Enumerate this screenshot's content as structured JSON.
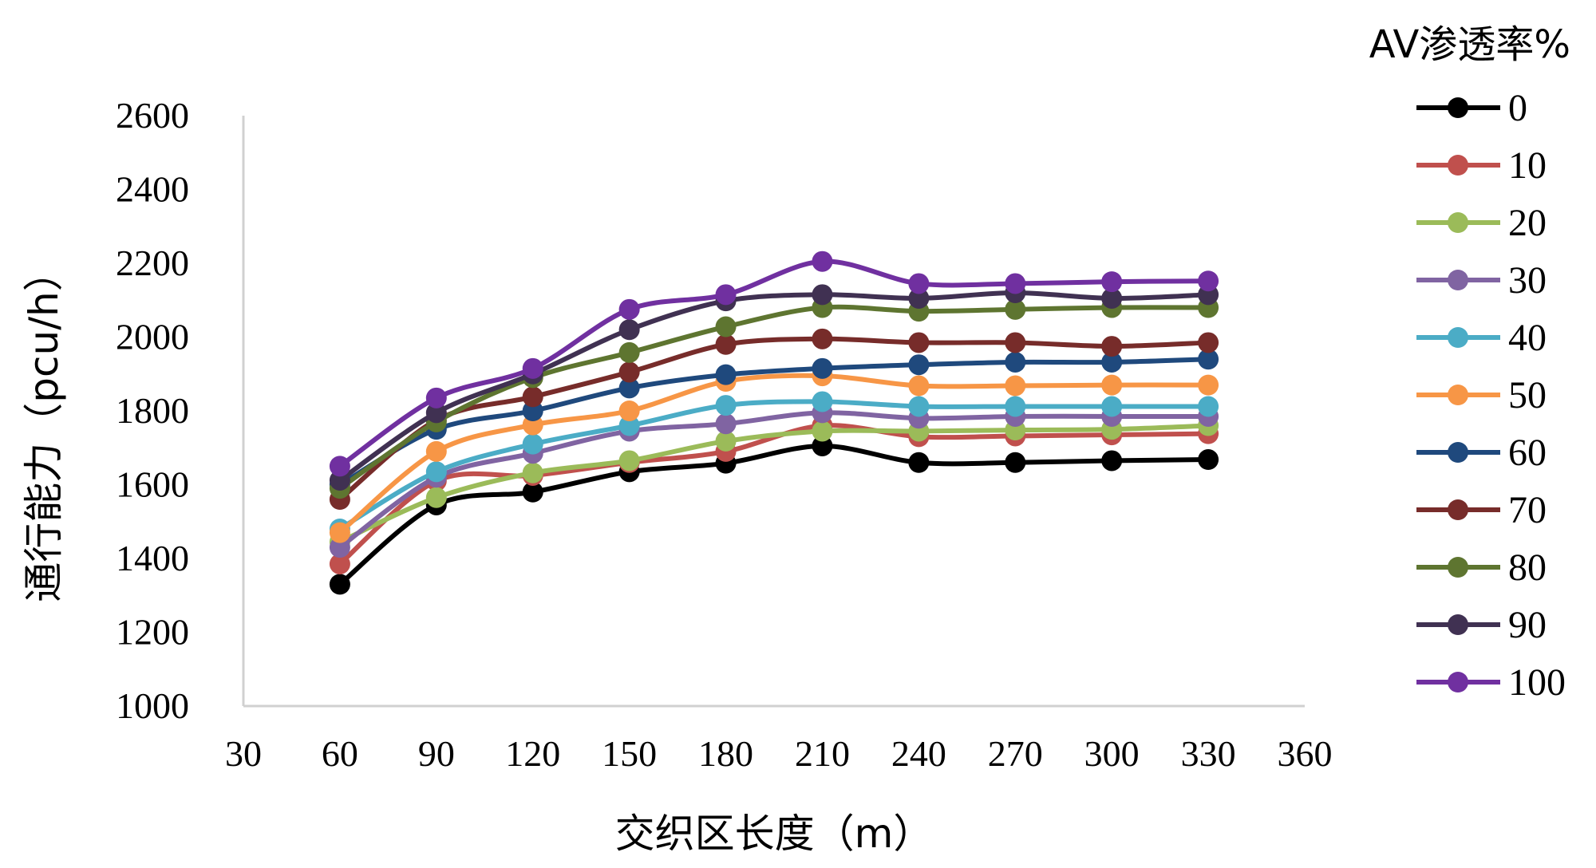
{
  "chart_data": {
    "type": "line",
    "xlabel": "交织区长度（m）",
    "ylabel": "通行能力（pcu/h）",
    "legend_title": "AV渗透率%",
    "legend_position": "right",
    "grid": false,
    "xlim": [
      30,
      360
    ],
    "ylim": [
      1000,
      2600
    ],
    "x_ticks": [
      "30",
      "60",
      "90",
      "120",
      "150",
      "180",
      "210",
      "240",
      "270",
      "300",
      "330",
      "360"
    ],
    "y_ticks": [
      "1000",
      "1200",
      "1400",
      "1600",
      "1800",
      "2000",
      "2200",
      "2400",
      "2600"
    ],
    "x": [
      60,
      90,
      120,
      150,
      180,
      210,
      240,
      270,
      300,
      330
    ],
    "series": [
      {
        "name": "0",
        "color": "#000000",
        "values": [
          1330,
          1545,
          1580,
          1635,
          1658,
          1705,
          1660,
          1660,
          1665,
          1668
        ]
      },
      {
        "name": "10",
        "color": "#C0504D",
        "values": [
          1385,
          1610,
          1625,
          1660,
          1690,
          1760,
          1730,
          1732,
          1735,
          1738
        ]
      },
      {
        "name": "20",
        "color": "#9BBB59",
        "values": [
          1445,
          1565,
          1632,
          1665,
          1718,
          1745,
          1745,
          1748,
          1750,
          1760
        ]
      },
      {
        "name": "30",
        "color": "#8064A2",
        "values": [
          1430,
          1620,
          1685,
          1745,
          1765,
          1795,
          1780,
          1785,
          1785,
          1785
        ]
      },
      {
        "name": "40",
        "color": "#4BACC6",
        "values": [
          1480,
          1635,
          1710,
          1760,
          1815,
          1825,
          1812,
          1812,
          1812,
          1812
        ]
      },
      {
        "name": "50",
        "color": "#F79646",
        "values": [
          1470,
          1690,
          1762,
          1800,
          1880,
          1895,
          1868,
          1868,
          1870,
          1870
        ]
      },
      {
        "name": "60",
        "color": "#1F497D",
        "values": [
          1600,
          1750,
          1800,
          1862,
          1898,
          1915,
          1925,
          1932,
          1932,
          1940
        ]
      },
      {
        "name": "70",
        "color": "#772C2A",
        "values": [
          1560,
          1775,
          1838,
          1905,
          1980,
          1995,
          1985,
          1985,
          1975,
          1985
        ]
      },
      {
        "name": "80",
        "color": "#5E7530",
        "values": [
          1590,
          1770,
          1890,
          1958,
          2028,
          2080,
          2070,
          2075,
          2080,
          2080
        ]
      },
      {
        "name": "90",
        "color": "#403152",
        "values": [
          1612,
          1795,
          1900,
          2020,
          2098,
          2115,
          2105,
          2120,
          2105,
          2115
        ]
      },
      {
        "name": "100",
        "color": "#7030A0",
        "values": [
          1650,
          1835,
          1915,
          2075,
          2115,
          2205,
          2145,
          2145,
          2150,
          2152
        ]
      }
    ]
  }
}
